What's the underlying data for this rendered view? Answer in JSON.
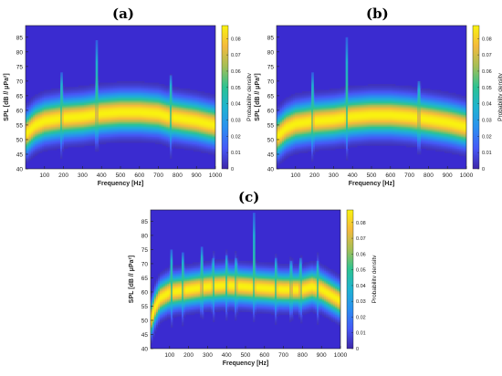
{
  "colors": {
    "background": "#3a2bd0",
    "colormap": [
      "#3e26a8",
      "#4658f6",
      "#2a8ff0",
      "#1fb3d1",
      "#2dc392",
      "#a4be56",
      "#f4ba3c",
      "#f9f20f"
    ]
  },
  "chart_data": [
    {
      "type": "heatmap",
      "panel_label": "(a)",
      "xlabel": "Frequency [Hz]",
      "ylabel": "SPL [dB // μPa²]",
      "colorbar_label": "Probability density",
      "xlim": [
        0,
        1000
      ],
      "ylim": [
        40,
        89
      ],
      "xticks": [
        100,
        200,
        300,
        400,
        500,
        600,
        700,
        800,
        900,
        1000
      ],
      "yticks": [
        40,
        45,
        50,
        55,
        60,
        65,
        70,
        75,
        80,
        85
      ],
      "clim": [
        0,
        0.088
      ],
      "cticks": [
        0,
        0.01,
        0.02,
        0.03,
        0.04,
        0.05,
        0.06,
        0.07,
        0.08
      ],
      "cticklabels": [
        "0",
        "0.01",
        "0.02",
        "0.03",
        "0.04",
        "0.05",
        "0.06",
        "0.07",
        "0.08"
      ],
      "median_spl_db": {
        "frequency_hz": [
          0,
          50,
          100,
          150,
          200,
          300,
          400,
          500,
          600,
          700,
          750,
          800,
          900,
          1000
        ],
        "spl_db": [
          52,
          55,
          56.5,
          57,
          57.5,
          58,
          59,
          59.5,
          59.5,
          59,
          58,
          57.5,
          56.5,
          55
        ]
      },
      "spread_db": 4.0,
      "tonal_peaks": [
        {
          "frequency_hz": 190,
          "peak_spl_db": 73
        },
        {
          "frequency_hz": 375,
          "peak_spl_db": 84
        },
        {
          "frequency_hz": 765,
          "peak_spl_db": 72
        }
      ]
    },
    {
      "type": "heatmap",
      "panel_label": "(b)",
      "xlabel": "Frequency [Hz]",
      "ylabel": "SPL [dB // μPa²]",
      "colorbar_label": "Probability density",
      "xlim": [
        0,
        1000
      ],
      "ylim": [
        40,
        89
      ],
      "xticks": [
        100,
        200,
        300,
        400,
        500,
        600,
        700,
        800,
        900,
        1000
      ],
      "yticks": [
        40,
        45,
        50,
        55,
        60,
        65,
        70,
        75,
        80,
        85
      ],
      "clim": [
        0,
        0.088
      ],
      "cticks": [
        0,
        0.01,
        0.02,
        0.03,
        0.04,
        0.05,
        0.06,
        0.07,
        0.08
      ],
      "cticklabels": [
        "0",
        "0.01",
        "0.02",
        "0.03",
        "0.04",
        "0.05",
        "0.06",
        "0.07",
        "0.08"
      ],
      "median_spl_db": {
        "frequency_hz": [
          0,
          50,
          100,
          150,
          200,
          300,
          400,
          500,
          600,
          700,
          750,
          800,
          900,
          1000
        ],
        "spl_db": [
          51,
          54,
          55.5,
          56,
          56.5,
          57,
          58,
          58.5,
          58.5,
          58,
          57.5,
          57,
          56,
          54.5
        ]
      },
      "spread_db": 4.0,
      "tonal_peaks": [
        {
          "frequency_hz": 190,
          "peak_spl_db": 73
        },
        {
          "frequency_hz": 370,
          "peak_spl_db": 85
        },
        {
          "frequency_hz": 750,
          "peak_spl_db": 70
        }
      ]
    },
    {
      "type": "heatmap",
      "panel_label": "(c)",
      "xlabel": "Frequency [Hz]",
      "ylabel": "SPL [dB // μPa²]",
      "colorbar_label": "Probability density",
      "xlim": [
        0,
        1000
      ],
      "ylim": [
        40,
        89
      ],
      "xticks": [
        100,
        200,
        300,
        400,
        500,
        600,
        700,
        800,
        900,
        1000
      ],
      "yticks": [
        40,
        45,
        50,
        55,
        60,
        65,
        70,
        75,
        80,
        85
      ],
      "clim": [
        0,
        0.088
      ],
      "cticks": [
        0,
        0.01,
        0.02,
        0.03,
        0.04,
        0.05,
        0.06,
        0.07,
        0.08
      ],
      "cticklabels": [
        "0",
        "0.01",
        "0.02",
        "0.03",
        "0.04",
        "0.05",
        "0.06",
        "0.07",
        "0.08"
      ],
      "median_spl_db": {
        "frequency_hz": [
          0,
          25,
          50,
          100,
          150,
          200,
          300,
          400,
          500,
          600,
          700,
          800,
          850,
          900,
          950,
          1000
        ],
        "spl_db": [
          50,
          55,
          58,
          60,
          60.5,
          61,
          62,
          62.5,
          62,
          61.5,
          61,
          61,
          62,
          61,
          59,
          57
        ]
      },
      "spread_db": 3.5,
      "tonal_peaks": [
        {
          "frequency_hz": 110,
          "peak_spl_db": 75
        },
        {
          "frequency_hz": 170,
          "peak_spl_db": 74
        },
        {
          "frequency_hz": 270,
          "peak_spl_db": 76
        },
        {
          "frequency_hz": 330,
          "peak_spl_db": 72
        },
        {
          "frequency_hz": 400,
          "peak_spl_db": 73
        },
        {
          "frequency_hz": 450,
          "peak_spl_db": 72
        },
        {
          "frequency_hz": 545,
          "peak_spl_db": 88
        },
        {
          "frequency_hz": 660,
          "peak_spl_db": 72
        },
        {
          "frequency_hz": 740,
          "peak_spl_db": 71
        },
        {
          "frequency_hz": 790,
          "peak_spl_db": 72
        },
        {
          "frequency_hz": 880,
          "peak_spl_db": 71
        }
      ]
    }
  ]
}
